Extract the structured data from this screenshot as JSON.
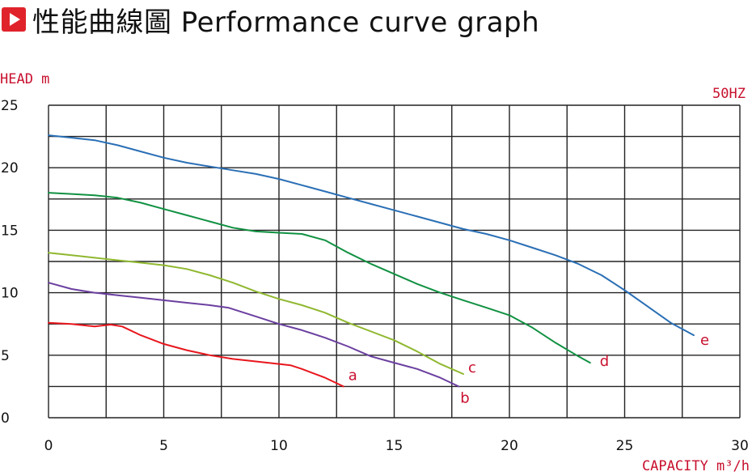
{
  "header": {
    "title": "性能曲線圖 Performance curve graph"
  },
  "colors": {
    "accent": "#e0232b",
    "label": "#c8102e",
    "grid": "#222222"
  },
  "chart_data": {
    "type": "line",
    "ylabel": "HEAD m",
    "xlabel": "CAPACITY m³/h",
    "frequency_label": "50HZ",
    "xlim": [
      0,
      30
    ],
    "ylim": [
      0,
      25
    ],
    "x_ticks": [
      "0",
      "5",
      "10",
      "15",
      "20",
      "25",
      "30"
    ],
    "y_ticks": [
      "0",
      "5",
      "10",
      "15",
      "20",
      "25"
    ],
    "grid": true,
    "series": [
      {
        "name": "a",
        "color": "#e8161d",
        "points": [
          [
            0,
            7.6
          ],
          [
            1,
            7.5
          ],
          [
            2,
            7.3
          ],
          [
            2.7,
            7.45
          ],
          [
            3.2,
            7.3
          ],
          [
            4,
            6.6
          ],
          [
            5,
            5.9
          ],
          [
            6,
            5.4
          ],
          [
            7,
            5.0
          ],
          [
            8,
            4.7
          ],
          [
            9,
            4.5
          ],
          [
            10,
            4.3
          ],
          [
            10.5,
            4.2
          ],
          [
            11,
            3.9
          ],
          [
            12,
            3.2
          ],
          [
            12.8,
            2.5
          ]
        ]
      },
      {
        "name": "b",
        "color": "#6b3fa0",
        "points": [
          [
            0,
            10.8
          ],
          [
            1,
            10.3
          ],
          [
            2,
            10.0
          ],
          [
            3,
            9.8
          ],
          [
            4,
            9.6
          ],
          [
            5,
            9.4
          ],
          [
            6,
            9.2
          ],
          [
            7,
            9.0
          ],
          [
            7.8,
            8.8
          ],
          [
            9,
            8.1
          ],
          [
            10,
            7.5
          ],
          [
            11,
            7.0
          ],
          [
            12,
            6.4
          ],
          [
            13,
            5.7
          ],
          [
            14,
            4.9
          ],
          [
            15,
            4.4
          ],
          [
            16,
            3.9
          ],
          [
            17,
            3.2
          ],
          [
            17.8,
            2.5
          ]
        ]
      },
      {
        "name": "c",
        "color": "#8fb82f",
        "points": [
          [
            0,
            13.2
          ],
          [
            1,
            13.0
          ],
          [
            2,
            12.8
          ],
          [
            3,
            12.6
          ],
          [
            4,
            12.4
          ],
          [
            5,
            12.2
          ],
          [
            6,
            11.9
          ],
          [
            7,
            11.4
          ],
          [
            8,
            10.8
          ],
          [
            9,
            10.1
          ],
          [
            10,
            9.5
          ],
          [
            11,
            9.0
          ],
          [
            12,
            8.4
          ],
          [
            13,
            7.6
          ],
          [
            14,
            6.9
          ],
          [
            15,
            6.2
          ],
          [
            16,
            5.3
          ],
          [
            17,
            4.3
          ],
          [
            18,
            3.5
          ]
        ]
      },
      {
        "name": "d",
        "color": "#119142",
        "points": [
          [
            0,
            18.0
          ],
          [
            1,
            17.9
          ],
          [
            2,
            17.8
          ],
          [
            3,
            17.6
          ],
          [
            4,
            17.2
          ],
          [
            5,
            16.7
          ],
          [
            6,
            16.2
          ],
          [
            7,
            15.7
          ],
          [
            8,
            15.2
          ],
          [
            9,
            14.9
          ],
          [
            10,
            14.8
          ],
          [
            11,
            14.7
          ],
          [
            12,
            14.2
          ],
          [
            13,
            13.2
          ],
          [
            14,
            12.3
          ],
          [
            15,
            11.5
          ],
          [
            16,
            10.7
          ],
          [
            17,
            10.0
          ],
          [
            18,
            9.4
          ],
          [
            19,
            8.8
          ],
          [
            20,
            8.2
          ],
          [
            21,
            7.2
          ],
          [
            22,
            6.0
          ],
          [
            23,
            4.9
          ],
          [
            23.5,
            4.4
          ]
        ]
      },
      {
        "name": "e",
        "color": "#2a6fb5",
        "points": [
          [
            0,
            22.6
          ],
          [
            1,
            22.4
          ],
          [
            2,
            22.2
          ],
          [
            3,
            21.8
          ],
          [
            4,
            21.3
          ],
          [
            5,
            20.8
          ],
          [
            6,
            20.4
          ],
          [
            7,
            20.1
          ],
          [
            8,
            19.8
          ],
          [
            9,
            19.5
          ],
          [
            10,
            19.1
          ],
          [
            11,
            18.6
          ],
          [
            12,
            18.1
          ],
          [
            13,
            17.6
          ],
          [
            14,
            17.1
          ],
          [
            15,
            16.6
          ],
          [
            16,
            16.1
          ],
          [
            17,
            15.6
          ],
          [
            18,
            15.1
          ],
          [
            19,
            14.7
          ],
          [
            20,
            14.2
          ],
          [
            21,
            13.6
          ],
          [
            22,
            13.0
          ],
          [
            23,
            12.3
          ],
          [
            24,
            11.4
          ],
          [
            25,
            10.2
          ],
          [
            26,
            8.9
          ],
          [
            27,
            7.6
          ],
          [
            28,
            6.6
          ]
        ]
      }
    ]
  }
}
